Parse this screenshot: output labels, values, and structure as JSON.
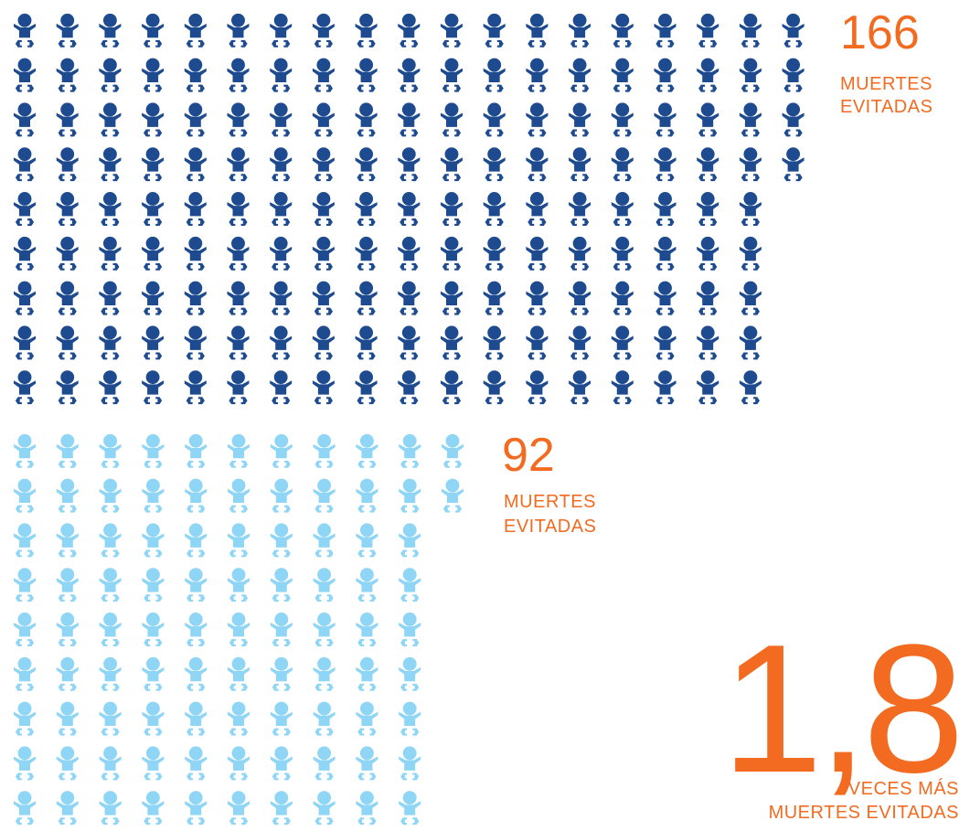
{
  "chart_data": {
    "type": "pictogram",
    "series": [
      {
        "value": 166,
        "label_value": "166",
        "label_lines": [
          "MUERTES",
          "EVITADAS"
        ],
        "color": "#1e4b8f"
      },
      {
        "value": 92,
        "label_value": "92",
        "label_lines": [
          "MUERTES",
          "EVITADAS"
        ],
        "color": "#8fd5f5"
      }
    ],
    "ratio": {
      "value": "1,8",
      "label_lines": [
        "VECES MÁS",
        "MUERTES EVITADAS"
      ]
    },
    "icon": "baby-icon",
    "accent_color": "#f26b21"
  }
}
